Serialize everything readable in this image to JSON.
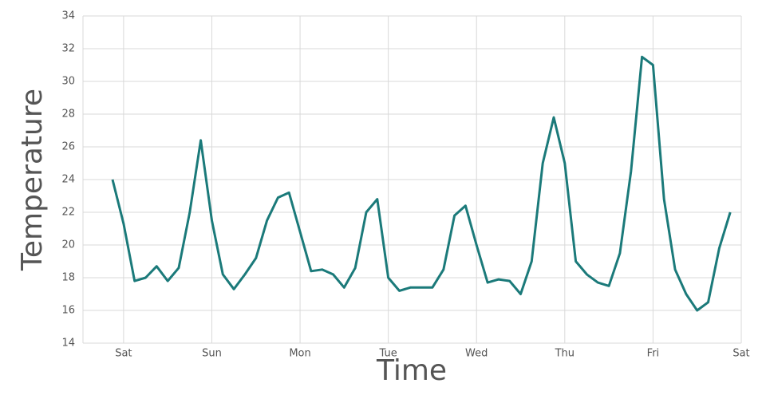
{
  "chart_data": {
    "type": "line",
    "x_label": "Time",
    "y_label": "Temperature",
    "x": [
      -0.125,
      0,
      0.125,
      0.25,
      0.375,
      0.5,
      0.625,
      0.75,
      0.875,
      1,
      1.125,
      1.25,
      1.375,
      1.5,
      1.625,
      1.75,
      1.875,
      2,
      2.125,
      2.25,
      2.375,
      2.5,
      2.625,
      2.75,
      2.875,
      3,
      3.125,
      3.25,
      3.375,
      3.5,
      3.625,
      3.75,
      3.875,
      4,
      4.125,
      4.25,
      4.375,
      4.5,
      4.625,
      4.75,
      4.875,
      5,
      5.125,
      5.25,
      5.375,
      5.5,
      5.625,
      5.75,
      5.875,
      6,
      6.125,
      6.25,
      6.375,
      6.5,
      6.625,
      6.75,
      6.875
    ],
    "series": [
      {
        "name": "Temperature",
        "color": "#1b7a7a",
        "values": [
          24.0,
          21.3,
          17.8,
          18.0,
          18.7,
          17.8,
          18.6,
          22.0,
          26.4,
          21.5,
          18.2,
          17.3,
          18.2,
          19.2,
          21.5,
          22.9,
          23.2,
          20.8,
          18.4,
          18.5,
          18.2,
          17.4,
          18.6,
          22.0,
          22.8,
          18.0,
          17.2,
          17.4,
          17.4,
          17.4,
          18.5,
          21.8,
          22.4,
          20.0,
          17.7,
          17.9,
          17.8,
          17.0,
          19.0,
          25.0,
          27.8,
          25.0,
          19.0,
          18.2,
          17.7,
          17.5,
          19.5,
          24.5,
          31.5,
          31.0,
          22.8,
          18.5,
          17.0,
          16.0,
          16.5,
          19.8,
          22.0
        ]
      }
    ],
    "xlim": [
      -0.46,
      7
    ],
    "xticks": [
      {
        "value": 0,
        "label": "Sat"
      },
      {
        "value": 1,
        "label": "Sun"
      },
      {
        "value": 2,
        "label": "Mon"
      },
      {
        "value": 3,
        "label": "Tue"
      },
      {
        "value": 4,
        "label": "Wed"
      },
      {
        "value": 5,
        "label": "Thu"
      },
      {
        "value": 6,
        "label": "Fri"
      },
      {
        "value": 7,
        "label": "Sat"
      }
    ],
    "ylim": [
      14,
      34
    ],
    "yticks": [
      14,
      16,
      18,
      20,
      22,
      24,
      26,
      28,
      30,
      32,
      34
    ],
    "grid": true
  }
}
